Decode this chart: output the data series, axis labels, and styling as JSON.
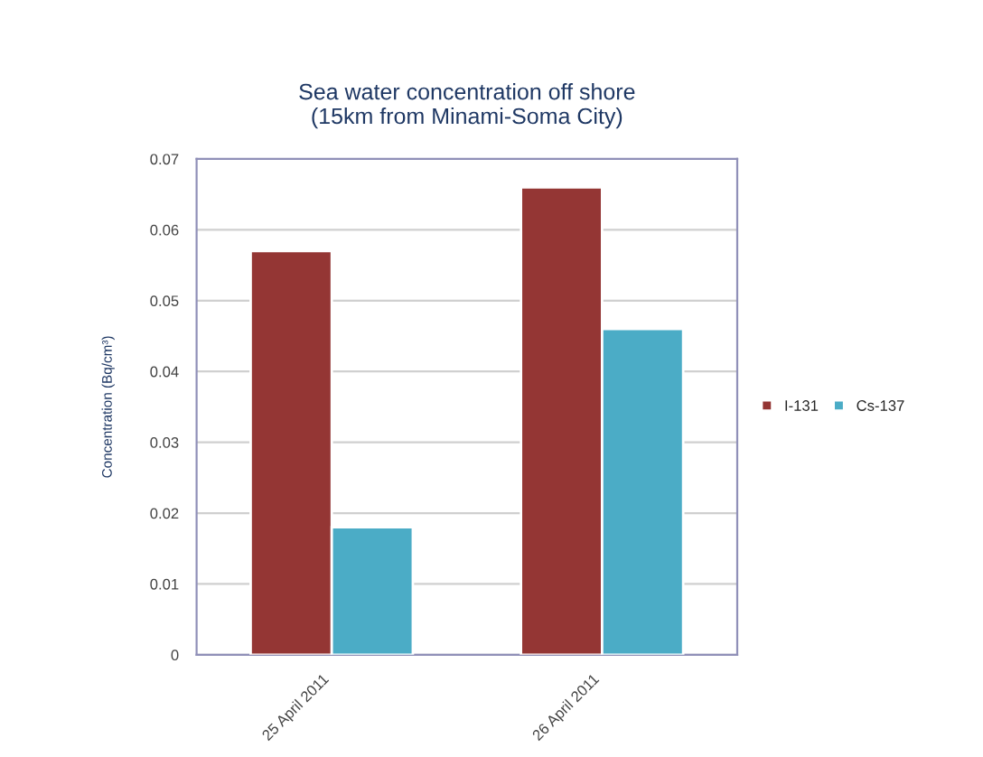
{
  "chart_data": {
    "type": "bar",
    "title": "Sea water concentration off shore\n(15km from Minami-Soma City)",
    "ylabel": "Concentration (Bq/cm³)",
    "categories": [
      "25 April 2011",
      "26 April 2011"
    ],
    "series": [
      {
        "name": "I-131",
        "color": "#943634",
        "values": [
          0.057,
          0.066
        ]
      },
      {
        "name": "Cs-137",
        "color": "#4bacc6",
        "values": [
          0.018,
          0.046
        ]
      }
    ],
    "ylim": [
      0,
      0.07
    ],
    "yticks": [
      {
        "value": 0,
        "label": "0"
      },
      0.01,
      0.02,
      0.03,
      0.04,
      0.05,
      0.06,
      0.07
    ],
    "grid": "y",
    "legend": "right"
  }
}
